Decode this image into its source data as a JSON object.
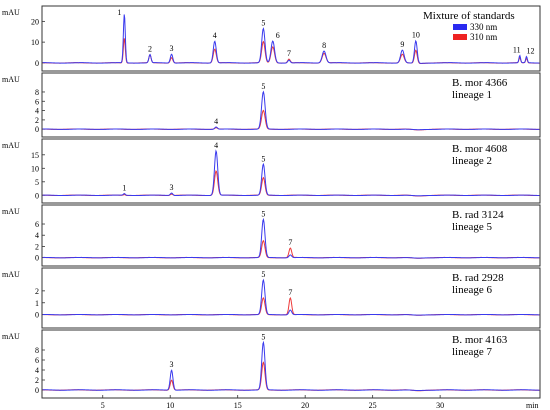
{
  "chart_data": {
    "type": "line",
    "x_unit": "min",
    "xlim": [
      0.5,
      37.4
    ],
    "x_ticks": [
      5,
      10,
      15,
      20,
      25,
      30
    ],
    "x_tick_labels": [
      "5",
      "10",
      "15",
      "20",
      "25",
      "30"
    ],
    "x_unit_label": "min",
    "y_unit_label": "mAU",
    "legend": {
      "placement": "top-right",
      "entries": [
        {
          "name": "330 nm",
          "color": "#2a2af0"
        },
        {
          "name": "310 nm",
          "color": "#ee2222"
        }
      ]
    },
    "colors": {
      "s330": "#3a3aee",
      "s310": "#ee3a3a",
      "frame": "#333333"
    },
    "panels": [
      {
        "title_lines": [
          "Mixture of standards"
        ],
        "ylim": [
          -1.5,
          25
        ],
        "y_ticks": [
          0,
          10,
          20
        ],
        "y_tick_labels": [
          "0",
          "10",
          "20"
        ],
        "peaks": [
          {
            "t": 6.6,
            "w": 0.07,
            "s330": 23.5,
            "s310": 12.0,
            "label": "1"
          },
          {
            "t": 8.5,
            "w": 0.08,
            "s330": 4.0,
            "s310": 3.8,
            "label": "2"
          },
          {
            "t": 10.1,
            "w": 0.09,
            "s330": 4.3,
            "s310": 2.6,
            "label": "3"
          },
          {
            "t": 13.3,
            "w": 0.11,
            "s330": 10.5,
            "s310": 6.6,
            "label": "4"
          },
          {
            "t": 16.9,
            "w": 0.12,
            "s330": 16.5,
            "s310": 10.2,
            "label": "5"
          },
          {
            "t": 17.6,
            "w": 0.13,
            "s330": 10.5,
            "s310": 7.8,
            "label": "6"
          },
          {
            "t": 18.8,
            "w": 0.09,
            "s330": 1.4,
            "s310": 1.8,
            "label": "7"
          },
          {
            "t": 21.4,
            "w": 0.14,
            "s330": 5.8,
            "s310": 4.6,
            "label": "8"
          },
          {
            "t": 27.2,
            "w": 0.13,
            "s330": 6.2,
            "s310": 4.1,
            "label": "9"
          },
          {
            "t": 28.2,
            "w": 0.1,
            "s330": 10.8,
            "s310": 6.4,
            "label": "10"
          },
          {
            "t": 35.9,
            "w": 0.06,
            "s330": 3.5,
            "s310": 2.5,
            "label": "11"
          },
          {
            "t": 36.4,
            "w": 0.06,
            "s330": 3.0,
            "s310": 2.2,
            "label": "12"
          }
        ]
      },
      {
        "title_lines": [
          "B. mor 4366",
          "lineage 1"
        ],
        "ylim": [
          -0.6,
          11
        ],
        "y_ticks": [
          0,
          2,
          4,
          6,
          8
        ],
        "y_tick_labels": [
          "0",
          "2",
          "4",
          "6",
          "8"
        ],
        "peaks": [
          {
            "t": 13.4,
            "w": 0.1,
            "s330": 0.5,
            "s310": 0.3,
            "label": "4"
          },
          {
            "t": 16.9,
            "w": 0.13,
            "s330": 8.0,
            "s310": 4.0,
            "label": "5"
          }
        ]
      },
      {
        "title_lines": [
          "B. mor 4608",
          "lineage 2"
        ],
        "ylim": [
          -1,
          19
        ],
        "y_ticks": [
          0,
          5,
          10,
          15
        ],
        "y_tick_labels": [
          "0",
          "5",
          "10",
          "15"
        ],
        "peaks": [
          {
            "t": 6.6,
            "w": 0.07,
            "s330": 0.6,
            "s310": 0.3,
            "label": "1"
          },
          {
            "t": 10.1,
            "w": 0.09,
            "s330": 0.9,
            "s310": 0.5,
            "label": "3"
          },
          {
            "t": 13.4,
            "w": 0.12,
            "s330": 16.5,
            "s310": 9.0,
            "label": "4"
          },
          {
            "t": 16.9,
            "w": 0.12,
            "s330": 11.5,
            "s310": 6.5,
            "label": "5"
          }
        ]
      },
      {
        "title_lines": [
          "B. rad 3124",
          "lineage 5"
        ],
        "ylim": [
          -0.6,
          8.5
        ],
        "y_ticks": [
          0,
          2,
          4,
          6
        ],
        "y_tick_labels": [
          "0",
          "2",
          "4",
          "6"
        ],
        "peaks": [
          {
            "t": 16.9,
            "w": 0.12,
            "s330": 6.8,
            "s310": 3.0,
            "label": "5"
          },
          {
            "t": 18.9,
            "w": 0.1,
            "s330": 0.5,
            "s310": 1.7,
            "label": "7"
          }
        ]
      },
      {
        "title_lines": [
          "B. rad 2928",
          "lineage 6"
        ],
        "ylim": [
          -0.7,
          3.5
        ],
        "y_ticks": [
          0,
          1,
          2
        ],
        "y_tick_labels": [
          "0",
          "1",
          "2"
        ],
        "peaks": [
          {
            "t": 16.9,
            "w": 0.12,
            "s330": 2.9,
            "s310": 1.4,
            "label": "5"
          },
          {
            "t": 18.9,
            "w": 0.1,
            "s330": 0.4,
            "s310": 1.4,
            "label": "7"
          }
        ]
      },
      {
        "title_lines": [
          "B. mor 4163",
          "lineage 7"
        ],
        "ylim": [
          -0.6,
          11
        ],
        "y_ticks": [
          0,
          2,
          4,
          6,
          8
        ],
        "y_tick_labels": [
          "0",
          "2",
          "4",
          "6",
          "8"
        ],
        "peaks": [
          {
            "t": 10.1,
            "w": 0.1,
            "s330": 4.0,
            "s310": 2.0,
            "label": "3"
          },
          {
            "t": 16.9,
            "w": 0.12,
            "s330": 9.5,
            "s310": 5.5,
            "label": "5"
          }
        ]
      }
    ]
  }
}
